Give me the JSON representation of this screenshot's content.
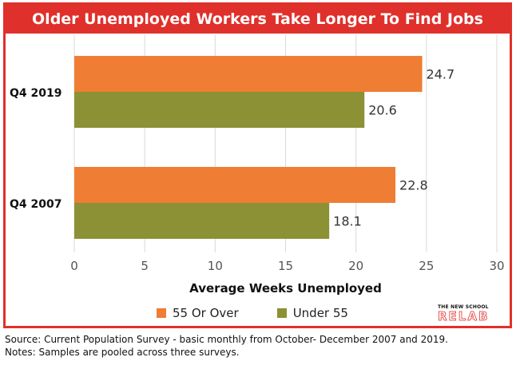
{
  "chart_data": {
    "type": "bar",
    "orientation": "horizontal",
    "title": "Older Unemployed Workers Take Longer To Find Jobs",
    "categories": [
      "Q4 2019",
      "Q4 2007"
    ],
    "series": [
      {
        "name": "55 Or Over",
        "values": [
          24.7,
          22.8
        ],
        "color": "#ef7d33"
      },
      {
        "name": "Under 55",
        "values": [
          20.6,
          18.1
        ],
        "color": "#8b9134"
      }
    ],
    "xlabel": "Average Weeks Unemployed",
    "xlim": [
      0,
      30
    ],
    "xticks": [
      0,
      5,
      10,
      15,
      20,
      25,
      30
    ],
    "grid": "vertical",
    "legend_position": "bottom"
  },
  "title_color": "#e0302b",
  "logo": {
    "top": "THE NEW SCHOOL",
    "main": "RELAB"
  },
  "footer": {
    "source": "Source: Current Population Survey - basic monthly from October- December 2007 and 2019.",
    "notes": "Notes:  Samples are pooled across three surveys."
  }
}
